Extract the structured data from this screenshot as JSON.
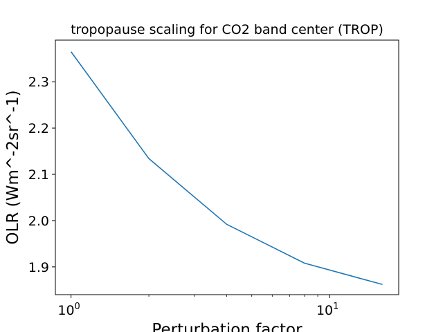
{
  "chart_data": {
    "type": "line",
    "title": "tropopause scaling for CO2 band center (TROP)",
    "xlabel": "Perturbation factor",
    "ylabel": "OLR (Wm^-2sr^-1)",
    "x_scale": "log",
    "xlim": [
      0.87,
      18.5
    ],
    "ylim": [
      1.84,
      2.39
    ],
    "x_ticks": [
      {
        "value": 1,
        "base": "10",
        "exp": "0"
      },
      {
        "value": 10,
        "base": "10",
        "exp": "1"
      }
    ],
    "x_minor_ticks": [
      2,
      3,
      4,
      5,
      6,
      7,
      8,
      9
    ],
    "y_ticks": [
      {
        "value": 1.9,
        "label": "1.9"
      },
      {
        "value": 2.0,
        "label": "2.0"
      },
      {
        "value": 2.1,
        "label": "2.1"
      },
      {
        "value": 2.2,
        "label": "2.2"
      },
      {
        "value": 2.3,
        "label": "2.3"
      }
    ],
    "grid": false,
    "series": [
      {
        "color": "#1f77b4",
        "x": [
          1,
          2,
          4,
          8,
          16
        ],
        "y": [
          2.365,
          2.134,
          1.992,
          1.908,
          1.862
        ]
      }
    ]
  }
}
